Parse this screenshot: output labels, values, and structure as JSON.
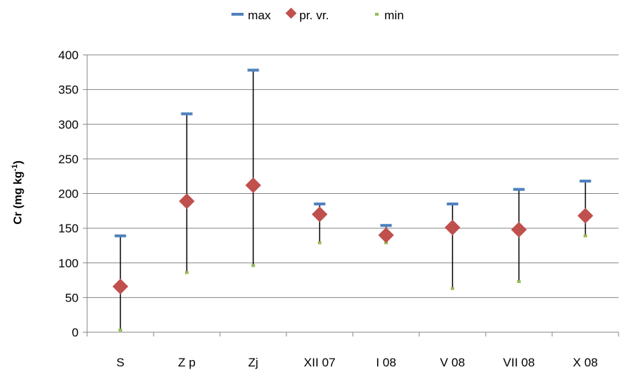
{
  "chart_data": {
    "type": "scatter",
    "title": "",
    "xlabel": "",
    "ylabel": {
      "main": "Cr (mg kg",
      "sup": "-1",
      "close": ")"
    },
    "ylim": [
      0,
      400
    ],
    "yticks": [
      0,
      50,
      100,
      150,
      200,
      250,
      300,
      350,
      400
    ],
    "categories": [
      "S",
      "Z p",
      "Zj",
      "XII 07",
      "I 08",
      "V 08",
      "VII 08",
      "X 08"
    ],
    "series": [
      {
        "name": "max",
        "values": [
          139,
          315,
          378,
          185,
          154,
          185,
          206,
          218
        ]
      },
      {
        "name": "pr. vr.",
        "values": [
          66,
          189,
          212,
          170,
          140,
          151,
          148,
          168
        ]
      },
      {
        "name": "min",
        "values": [
          3,
          86,
          96,
          129,
          129,
          63,
          73,
          139
        ]
      }
    ],
    "legend_position": "top",
    "grid": true
  },
  "colors": {
    "max": "#4f81bd",
    "avg": "#c0504d",
    "min": "#9bbb59",
    "grid": "#868686",
    "axis": "#868686",
    "range_line": "#000000"
  }
}
